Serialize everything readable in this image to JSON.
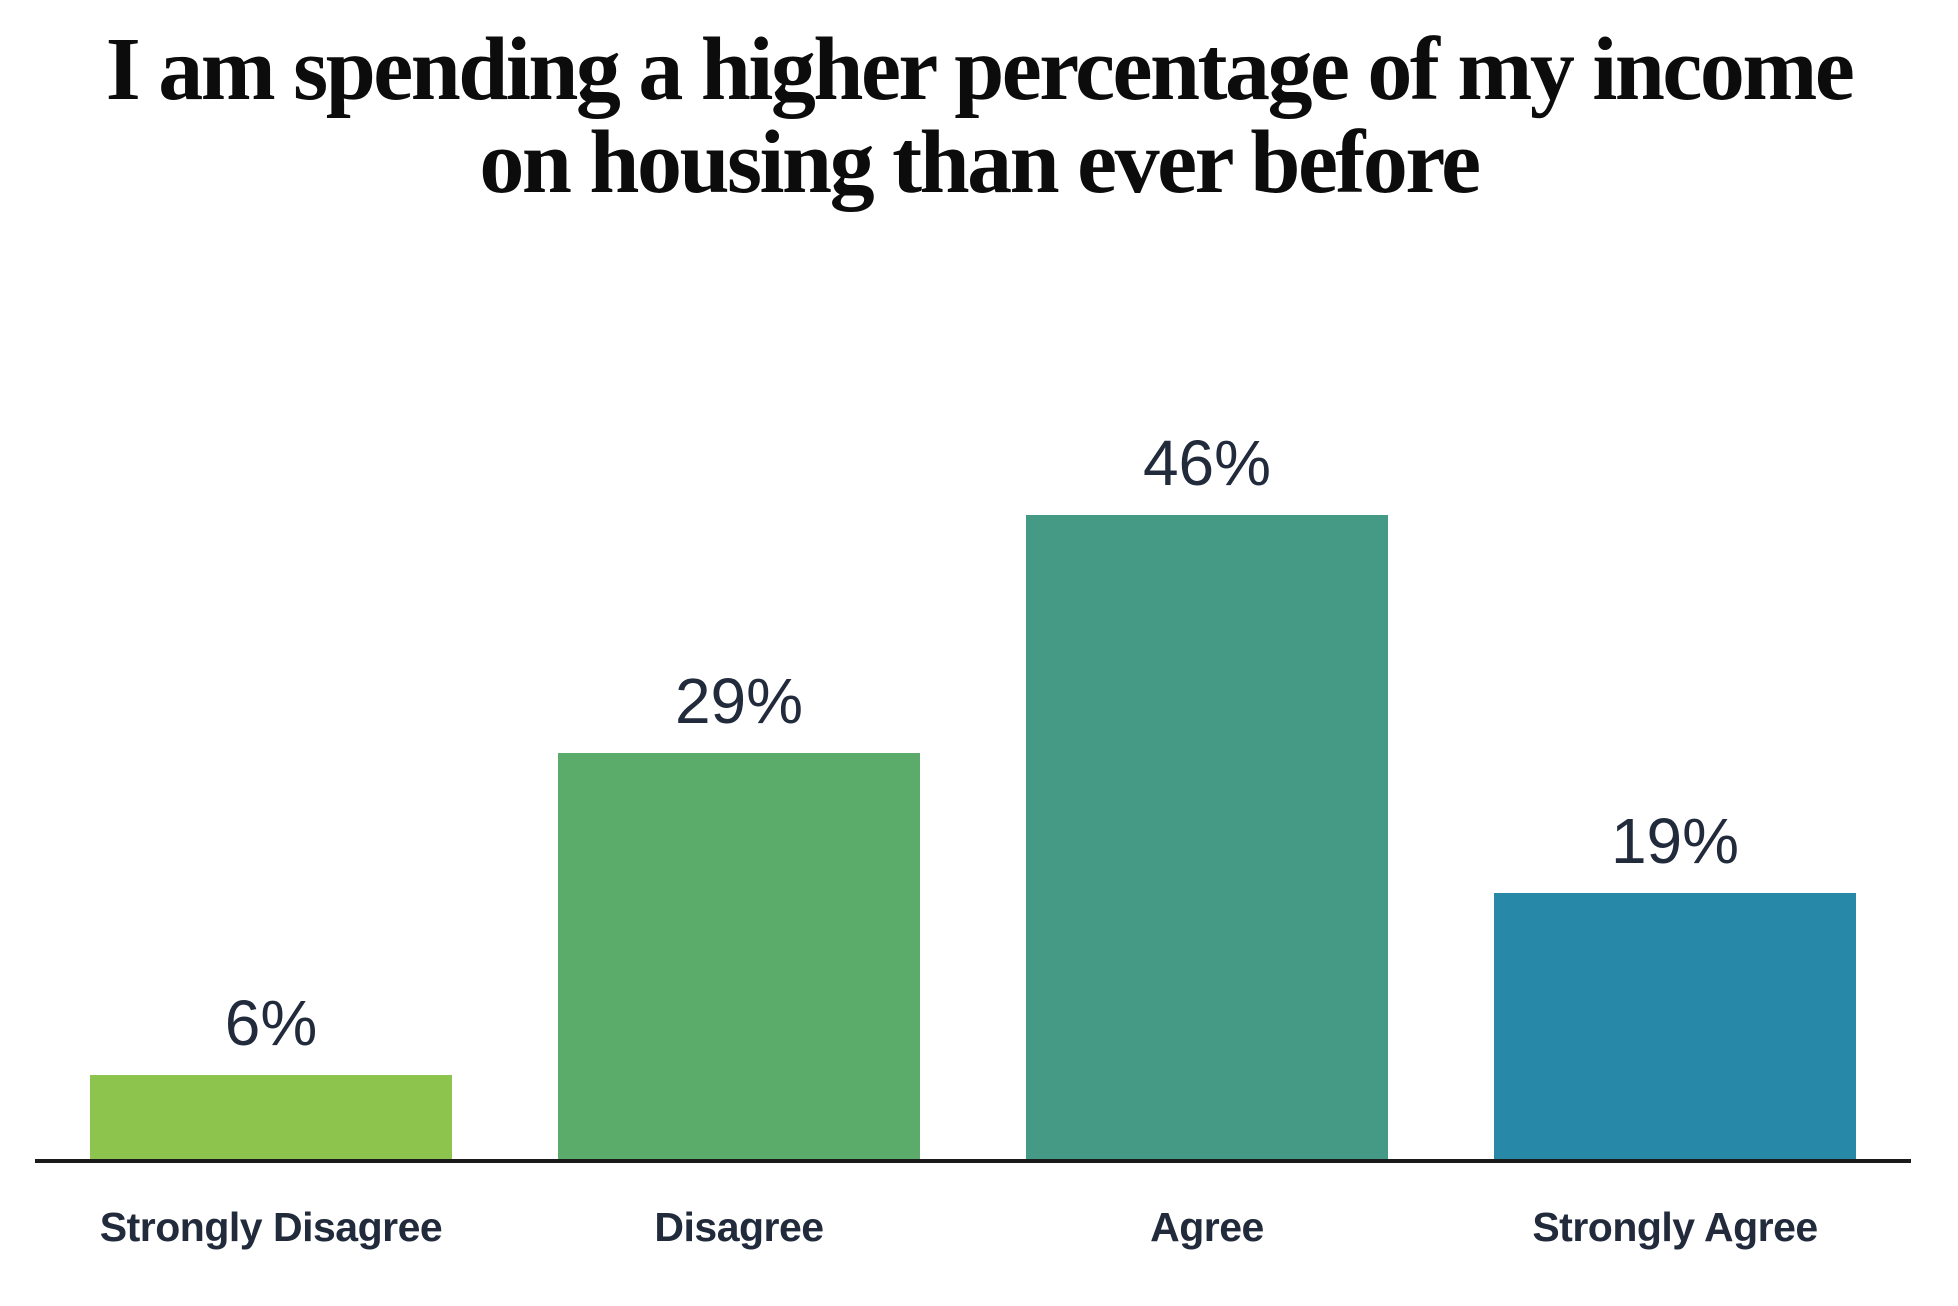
{
  "title": {
    "line1": "I am spending a higher percentage of my income",
    "line2": "on housing than ever before"
  },
  "chart_data": {
    "type": "bar",
    "title": "I am spending a higher percentage of my income on housing than ever before",
    "categories": [
      "Strongly Disagree",
      "Disagree",
      "Agree",
      "Strongly Agree"
    ],
    "values": [
      6,
      29,
      46,
      19
    ],
    "value_labels": [
      "6%",
      "29%",
      "46%",
      "19%"
    ],
    "xlabel": "",
    "ylabel": "",
    "ylim": [
      0,
      50
    ],
    "grid": false,
    "legend_position": "none",
    "bar_colors": [
      "#8CC44E",
      "#5BAB6B",
      "#449A85",
      "#2788A8"
    ],
    "value_label_color": "#222B3C",
    "category_label_color": "#222B3C",
    "axis_line_color": "#1b1b1b",
    "title_color": "#0c0c0c",
    "background_color": "#ffffff"
  }
}
